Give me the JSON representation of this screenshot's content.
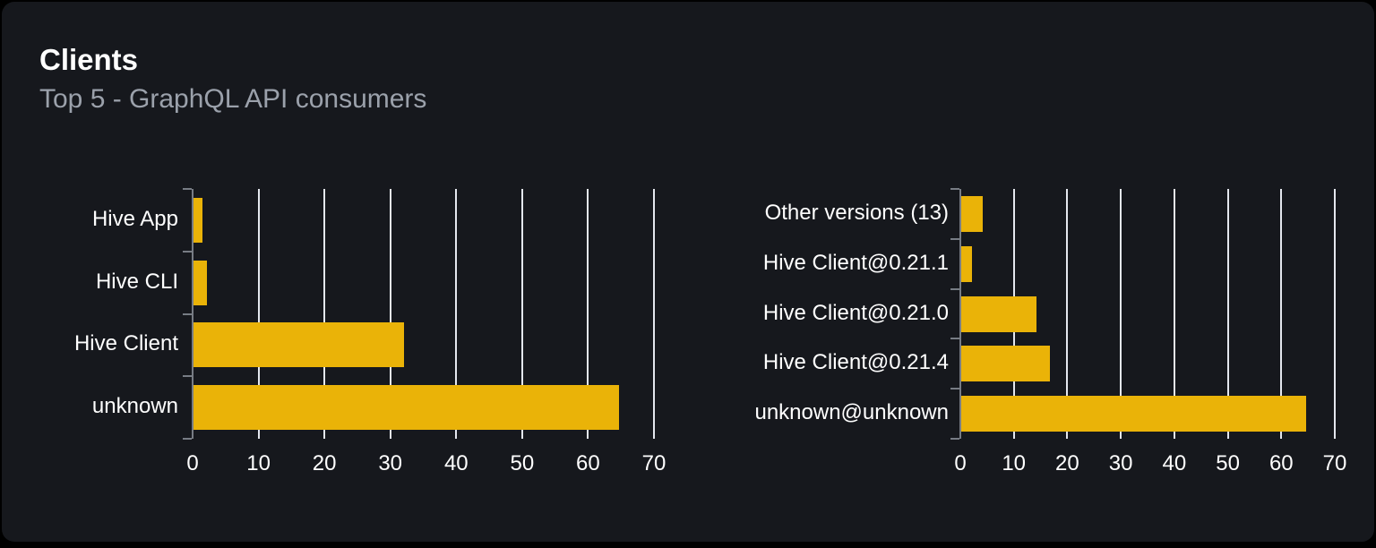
{
  "header": {
    "title": "Clients",
    "subtitle": "Top 5 - GraphQL API consumers"
  },
  "colors": {
    "bar": "#eab308",
    "card_background": "#16181d",
    "page_background": "#000000",
    "gridline": "#e4e7ee",
    "axis": "#777c84",
    "label_text": "#ffffff",
    "subtitle_text": "#9ba1ab"
  },
  "chart_data": [
    {
      "type": "bar",
      "orientation": "horizontal",
      "name": "clients",
      "categories": [
        "Hive App",
        "Hive CLI",
        "Hive Client",
        "unknown"
      ],
      "values": [
        1.3,
        2,
        32,
        64.5
      ],
      "xlim": [
        0,
        70
      ],
      "x_ticks": [
        0,
        10,
        20,
        30,
        40,
        50,
        60,
        70
      ],
      "grid": true,
      "legend": false,
      "bar_color": "#eab308"
    },
    {
      "type": "bar",
      "orientation": "horizontal",
      "name": "client-versions",
      "categories": [
        "Other versions (13)",
        "Hive Client@0.21.1",
        "Hive Client@0.21.0",
        "Hive Client@0.21.4",
        "unknown@unknown"
      ],
      "values": [
        4,
        2,
        14,
        16.5,
        64.5
      ],
      "xlim": [
        0,
        70
      ],
      "x_ticks": [
        0,
        10,
        20,
        30,
        40,
        50,
        60,
        70
      ],
      "grid": true,
      "legend": false,
      "bar_color": "#eab308"
    }
  ]
}
